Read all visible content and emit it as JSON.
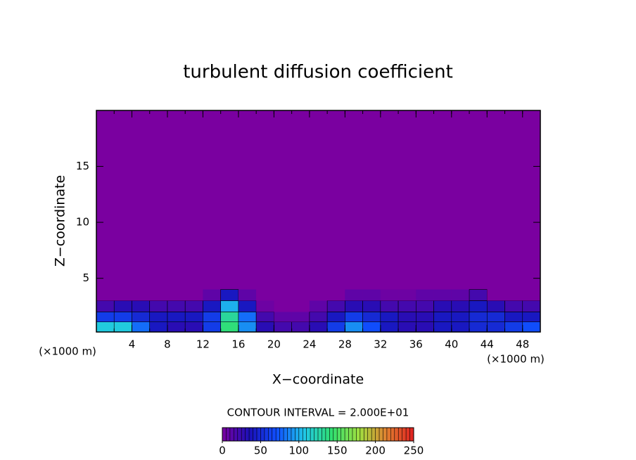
{
  "chart_data": {
    "type": "contour",
    "title": "turbulent diffusion coefficient",
    "x_label": "X−coordinate",
    "y_label": "Z−coordinate",
    "x_unit_label": "(×1000 m)",
    "xlim": [
      0,
      50
    ],
    "ylim": [
      0.2,
      20
    ],
    "xticks": [
      4,
      8,
      12,
      16,
      20,
      24,
      28,
      32,
      36,
      40,
      44,
      48
    ],
    "yticks": [
      5,
      10,
      15
    ],
    "x": [
      1,
      3,
      5,
      7,
      9,
      11,
      13,
      15,
      17,
      19,
      21,
      23,
      25,
      27,
      29,
      31,
      33,
      35,
      37,
      39,
      41,
      43,
      45,
      47,
      49
    ],
    "z_levels": [
      0.7,
      1.5,
      2.5,
      3.5
    ],
    "values": [
      [
        110,
        110,
        80,
        40,
        30,
        30,
        60,
        140,
        90,
        30,
        20,
        20,
        30,
        60,
        90,
        70,
        40,
        30,
        30,
        40,
        40,
        50,
        50,
        60,
        70
      ],
      [
        60,
        60,
        50,
        40,
        40,
        40,
        60,
        130,
        80,
        20,
        10,
        10,
        20,
        40,
        60,
        50,
        40,
        30,
        30,
        40,
        40,
        50,
        50,
        40,
        40
      ],
      [
        20,
        30,
        30,
        20,
        20,
        20,
        40,
        100,
        40,
        5,
        0,
        0,
        10,
        20,
        30,
        30,
        20,
        20,
        20,
        30,
        30,
        40,
        30,
        20,
        20
      ],
      [
        0,
        0,
        0,
        0,
        0,
        0,
        10,
        40,
        10,
        0,
        0,
        0,
        0,
        0,
        10,
        10,
        5,
        5,
        10,
        10,
        10,
        20,
        0,
        0,
        0
      ]
    ],
    "contour_interval_label": "CONTOUR INTERVAL = 2.000E+01",
    "colorbar_lim": [
      0,
      250
    ],
    "colorbar_ticks": [
      0,
      50,
      100,
      150,
      200,
      250
    ],
    "colormap": [
      "#7a00a0",
      "#1a10b8",
      "#1050ff",
      "#20c8e8",
      "#30e070",
      "#a0e040",
      "#e08030",
      "#e02020"
    ]
  }
}
